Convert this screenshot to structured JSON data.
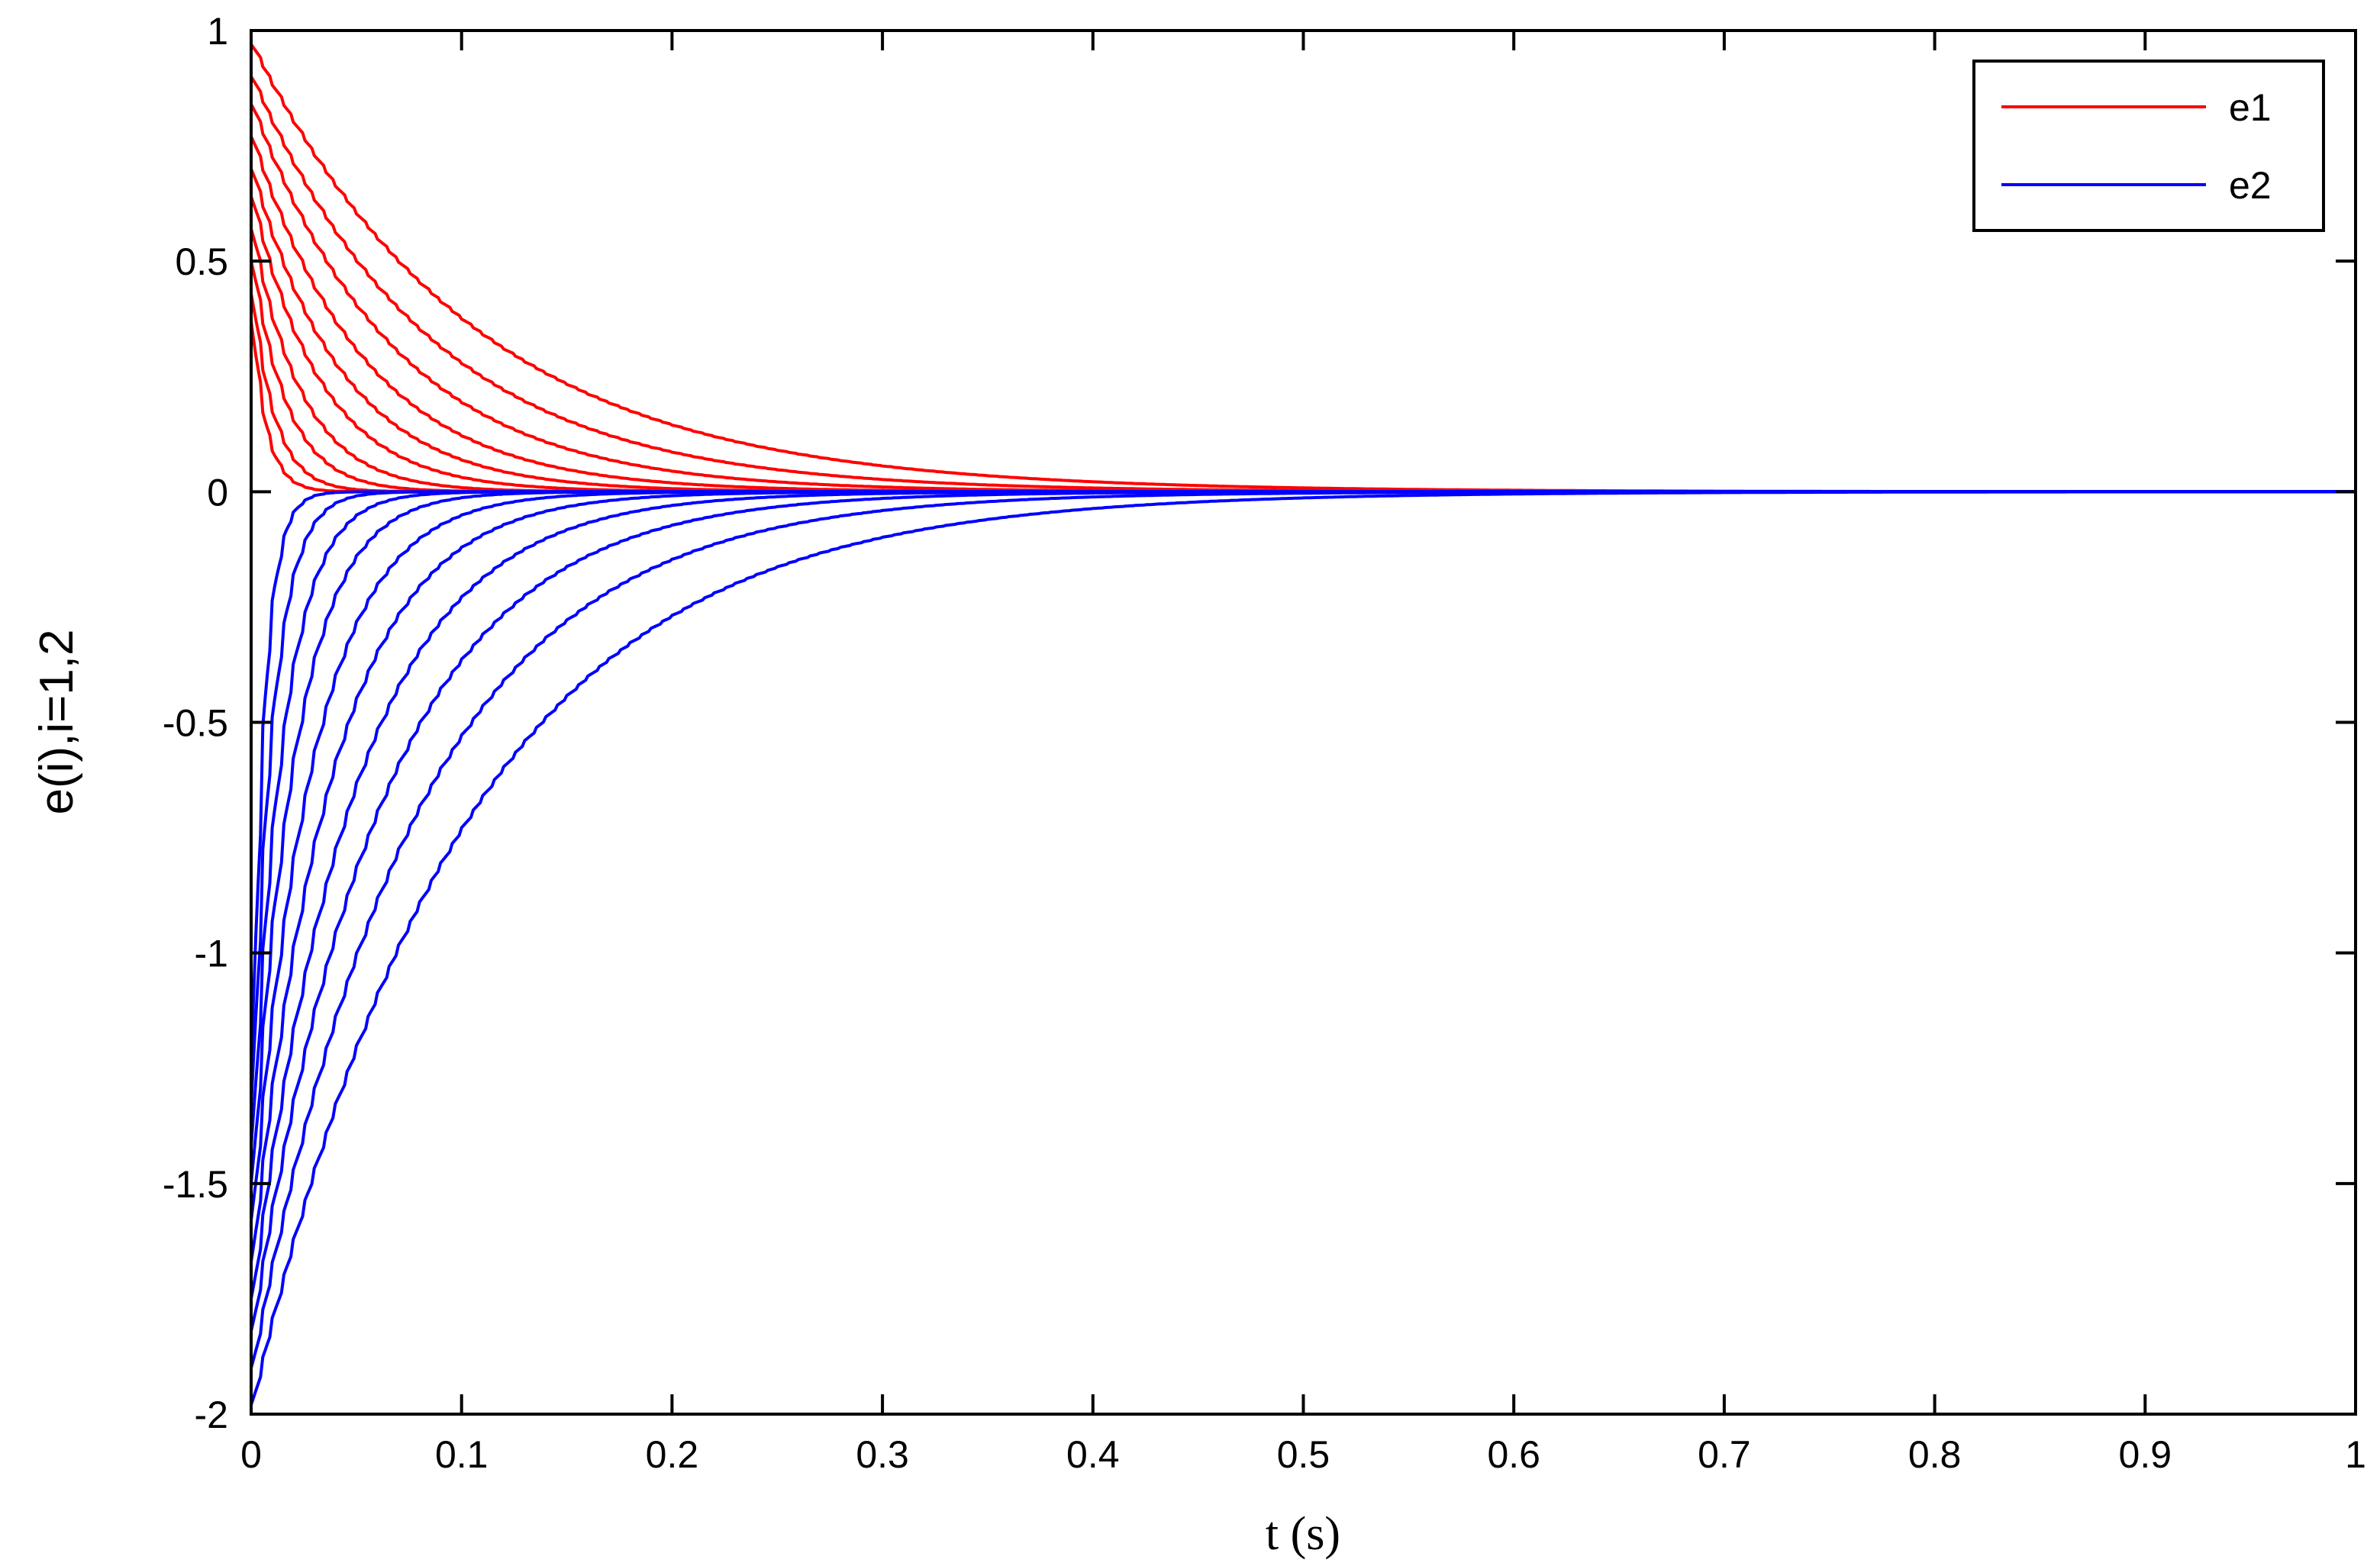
{
  "chart_data": {
    "type": "line",
    "title": "",
    "xlabel": "t (s)",
    "ylabel": "e(i),i=1,2",
    "xlim": [
      0,
      1
    ],
    "ylim": [
      -2,
      1
    ],
    "xticks": [
      0,
      0.1,
      0.2,
      0.3,
      0.4,
      0.5,
      0.6,
      0.7,
      0.8,
      0.9,
      1
    ],
    "xtick_labels": [
      "0",
      "0.1",
      "0.2",
      "0.3",
      "0.4",
      "0.5",
      "0.6",
      "0.7",
      "0.8",
      "0.9",
      "1"
    ],
    "yticks": [
      1,
      0.5,
      0,
      -0.5,
      -1,
      -1.5,
      -2
    ],
    "ytick_labels": [
      "1",
      "0.5",
      "0",
      "-0.5",
      "-1",
      "-1.5",
      "-2"
    ],
    "grid": false,
    "legend_position": "top-right",
    "series": [
      {
        "name": "e1",
        "color": "#ff0000",
        "curves": [
          {
            "initial": 0.97,
            "time_constant": 0.105
          },
          {
            "initial": 0.9,
            "time_constant": 0.085
          },
          {
            "initial": 0.84,
            "time_constant": 0.068
          },
          {
            "initial": 0.77,
            "time_constant": 0.054
          },
          {
            "initial": 0.7,
            "time_constant": 0.043
          },
          {
            "initial": 0.64,
            "time_constant": 0.033
          },
          {
            "initial": 0.57,
            "time_constant": 0.024
          },
          {
            "initial": 0.5,
            "time_constant": 0.017
          },
          {
            "initial": 0.43,
            "time_constant": 0.011
          },
          {
            "initial": 0.37,
            "time_constant": 0.007
          }
        ]
      },
      {
        "name": "e2",
        "color": "#0000ff",
        "curves": [
          {
            "initial": -1.98,
            "time_constant": 0.1
          },
          {
            "initial": -1.9,
            "time_constant": 0.078
          },
          {
            "initial": -1.82,
            "time_constant": 0.062
          },
          {
            "initial": -1.75,
            "time_constant": 0.049
          },
          {
            "initial": -1.67,
            "time_constant": 0.038
          },
          {
            "initial": -1.58,
            "time_constant": 0.029
          },
          {
            "initial": -1.5,
            "time_constant": 0.021
          },
          {
            "initial": -1.42,
            "time_constant": 0.015
          },
          {
            "initial": -1.33,
            "time_constant": 0.01
          },
          {
            "initial": -1.25,
            "time_constant": 0.006
          }
        ]
      }
    ]
  }
}
